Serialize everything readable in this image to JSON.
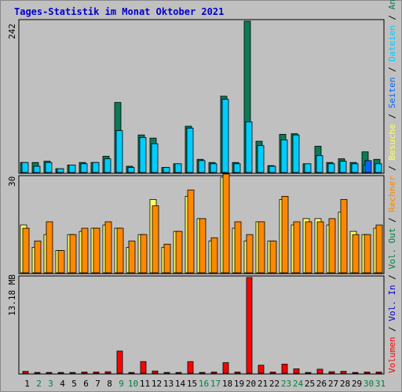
{
  "colors": {
    "background": "#c0c0c0",
    "plot": "#c0c0c0",
    "title": "#0000cc",
    "anfragen": "#0b7a57",
    "dateien": "#00ccff",
    "seiten": "#0066ff",
    "besuche": "#ffff66",
    "rechner": "#ff8800",
    "volumen": "#ff0000",
    "weekend": "#008040",
    "weekday": "#000000",
    "slash": "#000000"
  },
  "chart_data": [
    {
      "type": "bar",
      "title": "Tages-Statistik im Monat Oktober 2021",
      "max_label": "242",
      "ymax": 242,
      "categories": [
        "1",
        "2",
        "3",
        "4",
        "5",
        "6",
        "7",
        "8",
        "9",
        "10",
        "11",
        "12",
        "13",
        "14",
        "15",
        "16",
        "17",
        "18",
        "19",
        "20",
        "21",
        "22",
        "23",
        "24",
        "25",
        "26",
        "27",
        "28",
        "29",
        "30",
        "31"
      ],
      "legend": [
        {
          "key": "anfragen",
          "label": "Anfragen"
        },
        {
          "key": "dateien",
          "label": "Dateien"
        },
        {
          "key": "seiten",
          "label": "Seiten"
        }
      ],
      "series": [
        {
          "name": "Anfragen",
          "key": "anfragen",
          "values": [
            16,
            16,
            18,
            6,
            12,
            16,
            16,
            26,
            112,
            10,
            60,
            55,
            8,
            14,
            74,
            21,
            16,
            122,
            16,
            242,
            50,
            11,
            61,
            62,
            14,
            42,
            16,
            22,
            16,
            33,
            21
          ]
        },
        {
          "name": "Dateien",
          "key": "dateien",
          "values": [
            16,
            10,
            16,
            6,
            12,
            14,
            16,
            22,
            67,
            8,
            56,
            46,
            8,
            14,
            71,
            19,
            14,
            117,
            14,
            81,
            43,
            10,
            52,
            60,
            14,
            27,
            14,
            18,
            14,
            12,
            14
          ]
        },
        {
          "name": "Seiten",
          "key": "seiten",
          "values": [
            0,
            0,
            0,
            0,
            0,
            0,
            0,
            0,
            0,
            0,
            0,
            0,
            0,
            0,
            0,
            0,
            0,
            0,
            0,
            0,
            0,
            0,
            0,
            0,
            0,
            0,
            0,
            0,
            0,
            19,
            0
          ]
        }
      ]
    },
    {
      "type": "bar",
      "max_label": "30",
      "ymax": 30,
      "categories": [
        "1",
        "2",
        "3",
        "4",
        "5",
        "6",
        "7",
        "8",
        "9",
        "10",
        "11",
        "12",
        "13",
        "14",
        "15",
        "16",
        "17",
        "18",
        "19",
        "20",
        "21",
        "22",
        "23",
        "24",
        "25",
        "26",
        "27",
        "28",
        "29",
        "30",
        "31"
      ],
      "legend": [
        {
          "key": "besuche",
          "label": "Besuche"
        },
        {
          "key": "rechner",
          "label": "Rechner"
        }
      ],
      "series": [
        {
          "name": "Besuche",
          "key": "besuche",
          "values": [
            15,
            8,
            12,
            7,
            12,
            13,
            14,
            15,
            14,
            8,
            12,
            23,
            8,
            13,
            24,
            17,
            10,
            30,
            14,
            10,
            16,
            10,
            23,
            15,
            17,
            17,
            15,
            19,
            13,
            12,
            14
          ]
        },
        {
          "name": "Rechner",
          "key": "rechner",
          "values": [
            14,
            10,
            16,
            7,
            12,
            14,
            14,
            16,
            14,
            10,
            12,
            21,
            9,
            13,
            26,
            17,
            11,
            31,
            16,
            12,
            16,
            10,
            24,
            16,
            16,
            16,
            17,
            23,
            12,
            12,
            15
          ]
        }
      ]
    },
    {
      "type": "bar",
      "max_label": "13.18 MB",
      "ymax": 13.18,
      "categories": [
        "1",
        "2",
        "3",
        "4",
        "5",
        "6",
        "7",
        "8",
        "9",
        "10",
        "11",
        "12",
        "13",
        "14",
        "15",
        "16",
        "17",
        "18",
        "19",
        "20",
        "21",
        "22",
        "23",
        "24",
        "25",
        "26",
        "27",
        "28",
        "29",
        "30",
        "31"
      ],
      "legend": [
        {
          "key": "volumen",
          "label": "Volumen"
        },
        {
          "key": "vin",
          "label": "Vol. In"
        },
        {
          "key": "vout",
          "label": "Vol. Out"
        }
      ],
      "series": [
        {
          "name": "Volumen",
          "key": "volumen",
          "values": [
            0.25,
            0.1,
            0.1,
            0.1,
            0.1,
            0.15,
            0.15,
            0.2,
            3.05,
            0.1,
            1.6,
            0.3,
            0.1,
            0.1,
            1.6,
            0.1,
            0.15,
            1.45,
            0.15,
            13.18,
            1.1,
            0.15,
            1.25,
            0.6,
            0.1,
            0.55,
            0.2,
            0.25,
            0.1,
            0.15,
            0.15
          ]
        }
      ]
    }
  ],
  "days": [
    {
      "label": "1",
      "weekend": false
    },
    {
      "label": "2",
      "weekend": true
    },
    {
      "label": "3",
      "weekend": true
    },
    {
      "label": "4",
      "weekend": false
    },
    {
      "label": "5",
      "weekend": false
    },
    {
      "label": "6",
      "weekend": false
    },
    {
      "label": "7",
      "weekend": false
    },
    {
      "label": "8",
      "weekend": false
    },
    {
      "label": "9",
      "weekend": true
    },
    {
      "label": "10",
      "weekend": true
    },
    {
      "label": "11",
      "weekend": false
    },
    {
      "label": "12",
      "weekend": false
    },
    {
      "label": "13",
      "weekend": false
    },
    {
      "label": "14",
      "weekend": false
    },
    {
      "label": "15",
      "weekend": false
    },
    {
      "label": "16",
      "weekend": true
    },
    {
      "label": "17",
      "weekend": true
    },
    {
      "label": "18",
      "weekend": false
    },
    {
      "label": "19",
      "weekend": false
    },
    {
      "label": "20",
      "weekend": false
    },
    {
      "label": "21",
      "weekend": false
    },
    {
      "label": "22",
      "weekend": false
    },
    {
      "label": "23",
      "weekend": true
    },
    {
      "label": "24",
      "weekend": true
    },
    {
      "label": "25",
      "weekend": false
    },
    {
      "label": "26",
      "weekend": false
    },
    {
      "label": "27",
      "weekend": false
    },
    {
      "label": "28",
      "weekend": false
    },
    {
      "label": "29",
      "weekend": false
    },
    {
      "label": "30",
      "weekend": true
    },
    {
      "label": "31",
      "weekend": true
    }
  ]
}
